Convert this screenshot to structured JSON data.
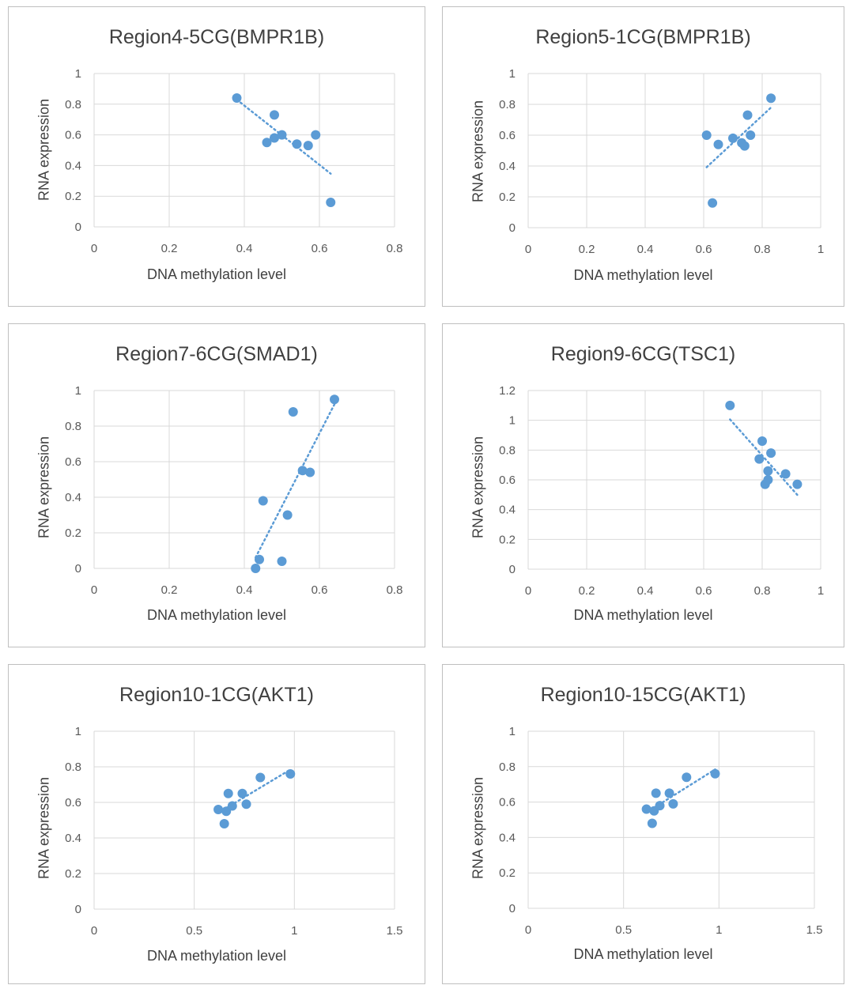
{
  "chart_data": [
    {
      "type": "scatter",
      "title": "Region4-5CG(BMPR1B)",
      "xlabel": "DNA methylation level",
      "ylabel": "RNA expression",
      "xlim": [
        0,
        0.8
      ],
      "ylim": [
        0,
        1
      ],
      "xticks": [
        "0",
        "0.2",
        "0.4",
        "0.6",
        "0.8"
      ],
      "yticks": [
        "0",
        "0.2",
        "0.4",
        "0.6",
        "0.8",
        "1"
      ],
      "xtick_values": [
        0,
        0.2,
        0.4,
        0.6,
        0.8
      ],
      "ytick_values": [
        0,
        0.2,
        0.4,
        0.6,
        0.8,
        1
      ],
      "grid": true,
      "trendline": "linear",
      "color": "#5b9bd5",
      "points": [
        [
          0.38,
          0.84
        ],
        [
          0.46,
          0.55
        ],
        [
          0.48,
          0.73
        ],
        [
          0.48,
          0.58
        ],
        [
          0.5,
          0.6
        ],
        [
          0.54,
          0.54
        ],
        [
          0.57,
          0.53
        ],
        [
          0.59,
          0.6
        ],
        [
          0.63,
          0.16
        ]
      ]
    },
    {
      "type": "scatter",
      "title": "Region5-1CG(BMPR1B)",
      "xlabel": "DNA methylation level",
      "ylabel": "RNA expression",
      "xlim": [
        0,
        1
      ],
      "ylim": [
        0,
        1
      ],
      "xticks": [
        "0",
        "0.2",
        "0.4",
        "0.6",
        "0.8",
        "1"
      ],
      "yticks": [
        "0",
        "0.2",
        "0.4",
        "0.6",
        "0.8",
        "1"
      ],
      "xtick_values": [
        0,
        0.2,
        0.4,
        0.6,
        0.8,
        1
      ],
      "ytick_values": [
        0,
        0.2,
        0.4,
        0.6,
        0.8,
        1
      ],
      "grid": true,
      "trendline": "linear",
      "color": "#5b9bd5",
      "points": [
        [
          0.61,
          0.6
        ],
        [
          0.63,
          0.16
        ],
        [
          0.65,
          0.54
        ],
        [
          0.7,
          0.58
        ],
        [
          0.73,
          0.55
        ],
        [
          0.74,
          0.53
        ],
        [
          0.75,
          0.73
        ],
        [
          0.76,
          0.6
        ],
        [
          0.83,
          0.84
        ]
      ]
    },
    {
      "type": "scatter",
      "title": "Region7-6CG(SMAD1)",
      "xlabel": "DNA methylation level",
      "ylabel": "RNA expression",
      "xlim": [
        0,
        0.8
      ],
      "ylim": [
        0,
        1
      ],
      "xticks": [
        "0",
        "0.2",
        "0.4",
        "0.6",
        "0.8"
      ],
      "yticks": [
        "0",
        "0.2",
        "0.4",
        "0.6",
        "0.8",
        "1"
      ],
      "xtick_values": [
        0,
        0.2,
        0.4,
        0.6,
        0.8
      ],
      "ytick_values": [
        0,
        0.2,
        0.4,
        0.6,
        0.8,
        1
      ],
      "grid": true,
      "trendline": "linear",
      "color": "#5b9bd5",
      "points": [
        [
          0.43,
          0.0
        ],
        [
          0.44,
          0.05
        ],
        [
          0.45,
          0.38
        ],
        [
          0.5,
          0.04
        ],
        [
          0.515,
          0.3
        ],
        [
          0.53,
          0.88
        ],
        [
          0.555,
          0.55
        ],
        [
          0.575,
          0.54
        ],
        [
          0.64,
          0.95
        ]
      ]
    },
    {
      "type": "scatter",
      "title": "Region9-6CG(TSC1)",
      "xlabel": "DNA methylation level",
      "ylabel": "RNA expression",
      "xlim": [
        0,
        1
      ],
      "ylim": [
        0,
        1.2
      ],
      "xticks": [
        "0",
        "0.2",
        "0.4",
        "0.6",
        "0.8",
        "1"
      ],
      "yticks": [
        "0",
        "0.2",
        "0.4",
        "0.6",
        "0.8",
        "1",
        "1.2"
      ],
      "xtick_values": [
        0,
        0.2,
        0.4,
        0.6,
        0.8,
        1
      ],
      "ytick_values": [
        0,
        0.2,
        0.4,
        0.6,
        0.8,
        1,
        1.2
      ],
      "grid": true,
      "trendline": "linear",
      "color": "#5b9bd5",
      "points": [
        [
          0.69,
          1.1
        ],
        [
          0.79,
          0.74
        ],
        [
          0.8,
          0.86
        ],
        [
          0.81,
          0.57
        ],
        [
          0.82,
          0.6
        ],
        [
          0.82,
          0.66
        ],
        [
          0.83,
          0.78
        ],
        [
          0.88,
          0.64
        ],
        [
          0.92,
          0.57
        ]
      ]
    },
    {
      "type": "scatter",
      "title": "Region10-1CG(AKT1)",
      "xlabel": "DNA methylation level",
      "ylabel": "RNA expression",
      "xlim": [
        0,
        1.5
      ],
      "ylim": [
        0,
        1
      ],
      "xticks": [
        "0",
        "0.5",
        "1",
        "1.5"
      ],
      "yticks": [
        "0",
        "0.2",
        "0.4",
        "0.6",
        "0.8",
        "1"
      ],
      "xtick_values": [
        0,
        0.5,
        1,
        1.5
      ],
      "ytick_values": [
        0,
        0.2,
        0.4,
        0.6,
        0.8,
        1
      ],
      "grid": true,
      "trendline": "linear",
      "color": "#5b9bd5",
      "points": [
        [
          0.62,
          0.56
        ],
        [
          0.65,
          0.48
        ],
        [
          0.66,
          0.55
        ],
        [
          0.67,
          0.65
        ],
        [
          0.69,
          0.58
        ],
        [
          0.74,
          0.65
        ],
        [
          0.76,
          0.59
        ],
        [
          0.83,
          0.74
        ],
        [
          0.98,
          0.76
        ]
      ]
    },
    {
      "type": "scatter",
      "title": "Region10-15CG(AKT1)",
      "xlabel": "DNA methylation level",
      "ylabel": "RNA expression",
      "xlim": [
        0,
        1.5
      ],
      "ylim": [
        0,
        1
      ],
      "xticks": [
        "0",
        "0.5",
        "1",
        "1.5"
      ],
      "yticks": [
        "0",
        "0.2",
        "0.4",
        "0.6",
        "0.8",
        "1"
      ],
      "xtick_values": [
        0,
        0.5,
        1,
        1.5
      ],
      "ytick_values": [
        0,
        0.2,
        0.4,
        0.6,
        0.8,
        1
      ],
      "grid": true,
      "trendline": "linear",
      "color": "#5b9bd5",
      "points": [
        [
          0.62,
          0.56
        ],
        [
          0.65,
          0.48
        ],
        [
          0.66,
          0.55
        ],
        [
          0.67,
          0.65
        ],
        [
          0.69,
          0.58
        ],
        [
          0.74,
          0.65
        ],
        [
          0.76,
          0.59
        ],
        [
          0.83,
          0.74
        ],
        [
          0.98,
          0.76
        ]
      ]
    }
  ]
}
